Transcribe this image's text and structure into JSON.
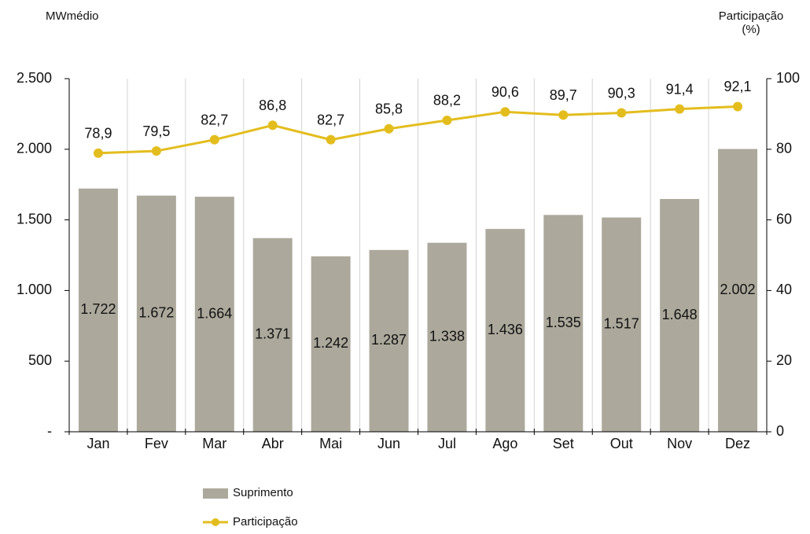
{
  "chart_data": {
    "type": "bar",
    "ylabel": "MWmédio",
    "y2label": "Participação (%)",
    "categories": [
      "Jan",
      "Fev",
      "Mar",
      "Abr",
      "Mai",
      "Jun",
      "Jul",
      "Ago",
      "Set",
      "Out",
      "Nov",
      "Dez"
    ],
    "series": [
      {
        "name": "Suprimento",
        "type": "bar",
        "color": "#aca99c",
        "values": [
          1722,
          1672,
          1664,
          1371,
          1242,
          1287,
          1338,
          1436,
          1535,
          1517,
          1648,
          2002
        ],
        "value_labels": [
          "1.722",
          "1.672",
          "1.664",
          "1.371",
          "1.242",
          "1.287",
          "1.338",
          "1.436",
          "1.535",
          "1.517",
          "1.648",
          "2.002"
        ]
      },
      {
        "name": "Participação",
        "type": "line",
        "axis": "y2",
        "color": "#e3bd1d",
        "values": [
          78.9,
          79.5,
          82.7,
          86.8,
          82.7,
          85.8,
          88.2,
          90.6,
          89.7,
          90.3,
          91.4,
          92.1
        ],
        "value_labels": [
          "78,9",
          "79,5",
          "82,7",
          "86,8",
          "82,7",
          "85,8",
          "88,2",
          "90,6",
          "89,7",
          "90,3",
          "91,4",
          "92,1"
        ]
      }
    ],
    "ylim": [
      0,
      2500
    ],
    "yticks": [
      {
        "value": 0,
        "label": "-"
      },
      500,
      {
        "value": 1000,
        "label": "1.000"
      },
      {
        "value": 1500,
        "label": "1.500"
      },
      {
        "value": 2000,
        "label": "2.000"
      },
      {
        "value": 2500,
        "label": "2.500"
      }
    ],
    "y2lim": [
      0,
      100
    ],
    "y2ticks": [
      0,
      20,
      40,
      60,
      80,
      100
    ],
    "grid": true,
    "legend": "bottom"
  }
}
